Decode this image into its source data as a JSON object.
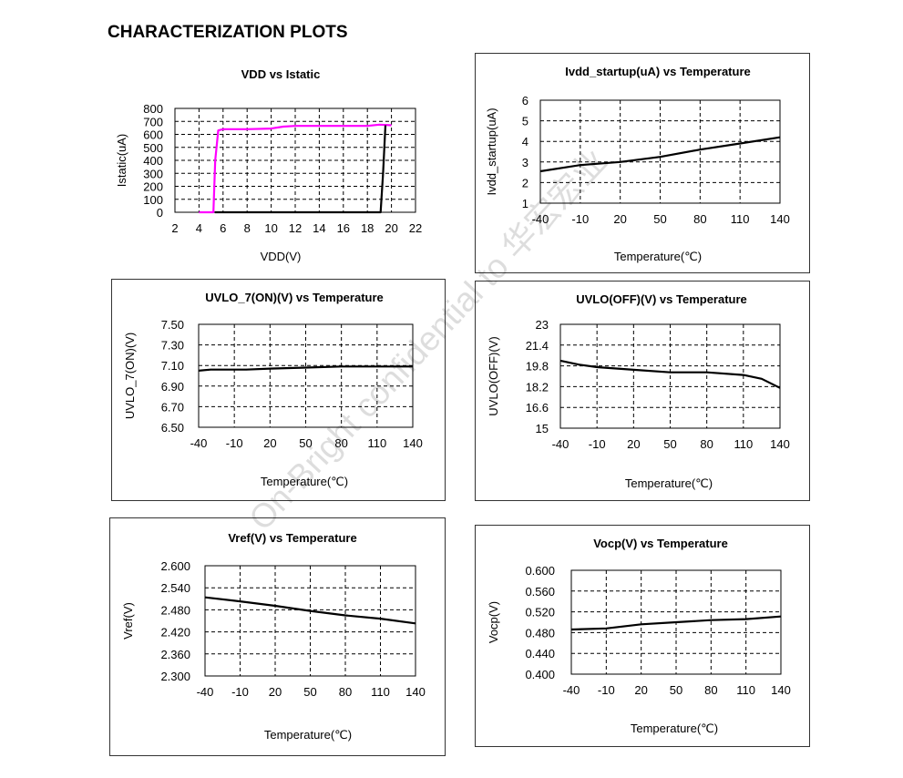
{
  "page_title": "CHARACTERIZATION PLOTS",
  "watermark": "On-Bright confidential to 华宏宏业",
  "chart_data": [
    {
      "id": "vdd-istatic",
      "type": "line",
      "title": "VDD vs Istatic",
      "xlabel": "VDD(V)",
      "ylabel": "Istatic(uA)",
      "xlim": [
        2,
        22
      ],
      "ylim": [
        0,
        800
      ],
      "xticks": [
        2,
        4,
        6,
        8,
        10,
        12,
        14,
        16,
        18,
        20,
        22
      ],
      "yticks": [
        0,
        100,
        200,
        300,
        400,
        500,
        600,
        700,
        800
      ],
      "xtick_labels": [
        "2",
        "4",
        "6",
        "8",
        "10",
        "12",
        "14",
        "16",
        "18",
        "20",
        "22"
      ],
      "ytick_labels": [
        "0",
        "100",
        "200",
        "300",
        "400",
        "500",
        "600",
        "700",
        "800"
      ],
      "grid": true,
      "series": [
        {
          "color": "#ff00ff",
          "x": [
            4.0,
            5.2,
            5.35,
            5.6,
            6,
            8,
            10,
            11,
            12,
            14,
            16,
            18,
            19,
            20
          ],
          "y": [
            0,
            0,
            400,
            630,
            640,
            640,
            645,
            660,
            665,
            665,
            665,
            665,
            675,
            670
          ]
        },
        {
          "color": "#000000",
          "x": [
            5.3,
            8,
            10,
            12,
            14,
            16,
            18,
            19.1,
            19.3,
            19.5
          ],
          "y": [
            0,
            0,
            0,
            0,
            0,
            0,
            0,
            0,
            300,
            670
          ]
        }
      ]
    },
    {
      "id": "ivdd-startup",
      "type": "line",
      "title": "Ivdd_startup(uA)  vs Temperature",
      "xlabel": "Temperature(℃)",
      "ylabel": "Ivdd_startup(uA)",
      "xlim": [
        -40,
        140
      ],
      "ylim": [
        1,
        6
      ],
      "xtick_labels": [
        "-40",
        "-10",
        "20",
        "50",
        "80",
        "110",
        "140"
      ],
      "ytick_labels": [
        "1",
        "2",
        "3",
        "4",
        "5",
        "6"
      ],
      "grid": true,
      "series": [
        {
          "color": "#000000",
          "x": [
            -40,
            -10,
            20,
            50,
            80,
            110,
            140
          ],
          "y": [
            2.55,
            2.85,
            3.0,
            3.25,
            3.6,
            3.9,
            4.2
          ]
        }
      ]
    },
    {
      "id": "uvlo-on",
      "type": "line",
      "title": "UVLO_7(ON)(V)  vs Temperature",
      "xlabel": "Temperature(℃)",
      "ylabel": "UVLO_7(ON)(V)",
      "xlim": [
        -40,
        140
      ],
      "ylim": [
        6.5,
        7.5
      ],
      "xtick_labels": [
        "-40",
        "-10",
        "20",
        "50",
        "80",
        "110",
        "140"
      ],
      "ytick_labels": [
        "6.50",
        "6.70",
        "6.90",
        "7.10",
        "7.30",
        "7.50"
      ],
      "grid": true,
      "series": [
        {
          "color": "#000000",
          "x": [
            -40,
            -30,
            -10,
            0,
            20,
            50,
            80,
            110,
            140
          ],
          "y": [
            7.05,
            7.06,
            7.06,
            7.06,
            7.07,
            7.08,
            7.09,
            7.09,
            7.09
          ]
        }
      ]
    },
    {
      "id": "uvlo-off",
      "type": "line",
      "title": "UVLO(OFF)(V)  vs Temperature",
      "xlabel": "Temperature(℃)",
      "ylabel": "UVLO(OFF)(V)",
      "xlim": [
        -40,
        140
      ],
      "ylim": [
        15,
        23
      ],
      "xtick_labels": [
        "-40",
        "-10",
        "20",
        "50",
        "80",
        "110",
        "140"
      ],
      "ytick_labels": [
        "15",
        "16.6",
        "18.2",
        "19.8",
        "21.4",
        "23"
      ],
      "grid": true,
      "series": [
        {
          "color": "#000000",
          "x": [
            -40,
            -25,
            -10,
            20,
            50,
            80,
            110,
            125,
            140
          ],
          "y": [
            20.2,
            19.9,
            19.7,
            19.5,
            19.3,
            19.3,
            19.1,
            18.8,
            18.1
          ]
        }
      ]
    },
    {
      "id": "vref",
      "type": "line",
      "title": "Vref(V)  vs Temperature",
      "xlabel": "Temperature(℃)",
      "ylabel": "Vref(V)",
      "xlim": [
        -40,
        140
      ],
      "ylim": [
        2.3,
        2.6
      ],
      "xtick_labels": [
        "-40",
        "-10",
        "20",
        "50",
        "80",
        "110",
        "140"
      ],
      "ytick_labels": [
        "2.300",
        "2.360",
        "2.420",
        "2.480",
        "2.540",
        "2.600"
      ],
      "grid": true,
      "series": [
        {
          "color": "#000000",
          "x": [
            -40,
            -10,
            20,
            50,
            80,
            110,
            140
          ],
          "y": [
            2.514,
            2.503,
            2.491,
            2.477,
            2.465,
            2.456,
            2.443
          ]
        }
      ]
    },
    {
      "id": "vocp",
      "type": "line",
      "title": "Vocp(V) vs Temperature",
      "xlabel": "Temperature(℃)",
      "ylabel": "Vocp(V)",
      "xlim": [
        -40,
        140
      ],
      "ylim": [
        0.4,
        0.6
      ],
      "xtick_labels": [
        "-40",
        "-10",
        "20",
        "50",
        "80",
        "110",
        "140"
      ],
      "ytick_labels": [
        "0.400",
        "0.440",
        "0.480",
        "0.520",
        "0.560",
        "0.600"
      ],
      "grid": true,
      "series": [
        {
          "color": "#000000",
          "x": [
            -40,
            -10,
            20,
            50,
            80,
            110,
            140
          ],
          "y": [
            0.486,
            0.488,
            0.496,
            0.5,
            0.504,
            0.506,
            0.511
          ]
        }
      ]
    }
  ]
}
